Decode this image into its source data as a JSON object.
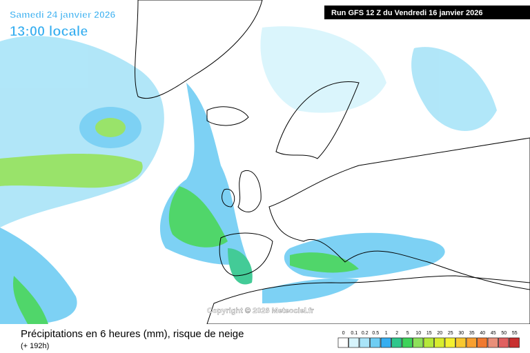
{
  "header": {
    "date": "Samedi 24 janvier 2026",
    "time": "13:00 locale",
    "run": "Run GFS 12 Z du Vendredi 16 janvier 2026"
  },
  "copyright": "Copyright © 2026 Meteociel.fr",
  "footer": {
    "title": "Précipitations en 6 heures (mm), risque de neige",
    "lead": "(+ 192h)"
  },
  "legend": [
    {
      "value": 0,
      "color": "#ffffff"
    },
    {
      "value": 0.1,
      "color": "#d6f4fc"
    },
    {
      "value": 0.2,
      "color": "#a9e4f8"
    },
    {
      "value": 0.5,
      "color": "#6fcdf3"
    },
    {
      "value": 1,
      "color": "#36aef0"
    },
    {
      "value": 2,
      "color": "#2fc68c"
    },
    {
      "value": 5,
      "color": "#3ed25a"
    },
    {
      "value": 10,
      "color": "#8ee05a"
    },
    {
      "value": 15,
      "color": "#b5e83a"
    },
    {
      "value": 20,
      "color": "#d8ec2e"
    },
    {
      "value": 25,
      "color": "#f4f030"
    },
    {
      "value": 30,
      "color": "#f8c830"
    },
    {
      "value": 35,
      "color": "#f8a030"
    },
    {
      "value": 40,
      "color": "#f07a30"
    },
    {
      "value": 45,
      "color": "#e8907a"
    },
    {
      "value": 50,
      "color": "#e06060"
    },
    {
      "value": 55,
      "color": "#c83030"
    }
  ]
}
